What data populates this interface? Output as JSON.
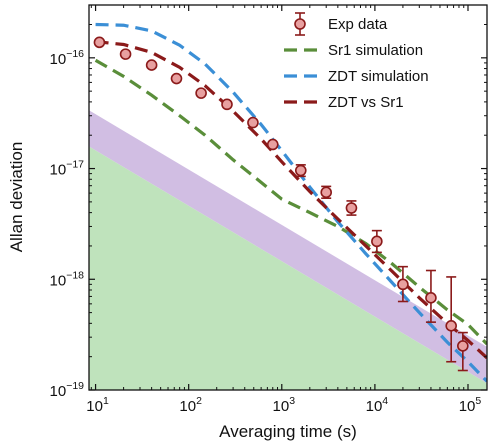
{
  "chart_data": {
    "type": "line",
    "xlabel": "Averaging time (s)",
    "ylabel": "Allan deviation",
    "x_scale": "log",
    "y_scale": "log",
    "xlim": [
      8.5,
      160000
    ],
    "ylim": [
      1e-19,
      3e-16
    ],
    "x_ticks": [
      {
        "value": 10,
        "base": "10",
        "exp": "1"
      },
      {
        "value": 100,
        "base": "10",
        "exp": "2"
      },
      {
        "value": 1000,
        "base": "10",
        "exp": "3"
      },
      {
        "value": 10000,
        "base": "10",
        "exp": "4"
      },
      {
        "value": 100000,
        "base": "10",
        "exp": "5"
      }
    ],
    "y_ticks": [
      {
        "value": 1e-19,
        "base": "10",
        "exp": "−19"
      },
      {
        "value": 1e-18,
        "base": "10",
        "exp": "−18"
      },
      {
        "value": 1e-17,
        "base": "10",
        "exp": "−17"
      },
      {
        "value": 1e-16,
        "base": "10",
        "exp": "−16"
      }
    ],
    "legend_position": "top-right",
    "bands": [
      {
        "color": "#c6aedc",
        "opacity": 0.8,
        "x": [
          8.5,
          160000
        ],
        "upper": [
          3.36e-17,
          2.45e-19
        ],
        "lower": [
          1.58e-17,
          1.15e-19
        ]
      },
      {
        "color": "#bfe3bc",
        "opacity": 1,
        "x": [
          8.5,
          160000
        ],
        "upper": [
          1.58e-17,
          1.15e-19
        ],
        "lower": [
          1e-19,
          1e-19
        ]
      }
    ],
    "series": [
      {
        "name": "Sr1 simulation",
        "color": "#5a8e3a",
        "style": "dashed",
        "x": [
          10,
          20,
          40,
          80,
          150,
          300,
          600,
          1000,
          2000,
          4000,
          8000,
          15000,
          30000,
          60000,
          100000,
          160000
        ],
        "y": [
          9.5e-17,
          6.8e-17,
          4.6e-17,
          3e-17,
          2e-17,
          1.2e-17,
          7.5e-18,
          5.3e-18,
          4e-18,
          3e-18,
          2.1e-18,
          1.4e-18,
          8.5e-19,
          5.3e-19,
          3.9e-19,
          2.6e-19
        ]
      },
      {
        "name": "ZDT simulation",
        "color": "#3b8fd6",
        "style": "dashed",
        "x": [
          10,
          20,
          40,
          80,
          150,
          300,
          600,
          1000,
          2000,
          4000,
          8000,
          15000,
          30000,
          60000,
          100000,
          160000
        ],
        "y": [
          2e-16,
          1.97e-16,
          1.75e-16,
          1.3e-16,
          8.8e-17,
          4.9e-17,
          2.5e-17,
          1.45e-17,
          6.8e-18,
          3.3e-18,
          1.7e-18,
          9.5e-19,
          5e-19,
          2.7e-19,
          1.8e-19,
          1.2e-19
        ]
      },
      {
        "name": "ZDT vs Sr1",
        "color": "#8b1a1a",
        "style": "dashed",
        "x": [
          10,
          20,
          40,
          80,
          150,
          300,
          600,
          1000,
          2000,
          4000,
          8000,
          15000,
          30000,
          60000,
          100000,
          160000
        ],
        "y": [
          1.4e-16,
          1.32e-16,
          1.12e-16,
          8.2e-17,
          5.6e-17,
          3.3e-17,
          1.85e-17,
          1.15e-17,
          6.2e-18,
          3.5e-18,
          2e-18,
          1.2e-18,
          6.8e-19,
          4e-19,
          2.8e-19,
          1.95e-19
        ]
      }
    ],
    "points": {
      "name": "Exp data",
      "color": "#8b1a1a",
      "fill": "#e8a0a0",
      "x": [
        11,
        21,
        40,
        74,
        136,
        258,
        490,
        800,
        1600,
        3000,
        5600,
        10500,
        20000,
        40000,
        66000,
        88000
      ],
      "y": [
        1.38e-16,
        1.08e-16,
        8.6e-17,
        6.5e-17,
        4.8e-17,
        3.8e-17,
        2.6e-17,
        1.65e-17,
        9.6e-18,
        6.1e-18,
        4.4e-18,
        2.2e-18,
        9e-19,
        6.8e-19,
        3.8e-19,
        2.5e-19
      ],
      "err_low": [
        1.3e-16,
        1.02e-16,
        8.1e-17,
        6.1e-17,
        4.5e-17,
        3.5e-17,
        2.4e-17,
        1.5e-17,
        8.5e-18,
        5.4e-18,
        3.8e-18,
        1.75e-18,
        6.3e-19,
        4.1e-19,
        1.8e-19,
        1.5e-19
      ],
      "err_high": [
        1.46e-16,
        1.14e-16,
        9.1e-17,
        6.9e-17,
        5.1e-17,
        4.1e-17,
        2.8e-17,
        1.8e-17,
        1.08e-17,
        6.9e-18,
        5.1e-18,
        2.75e-18,
        1.3e-18,
        1.2e-18,
        1.05e-18,
        3.3e-19
      ]
    }
  }
}
